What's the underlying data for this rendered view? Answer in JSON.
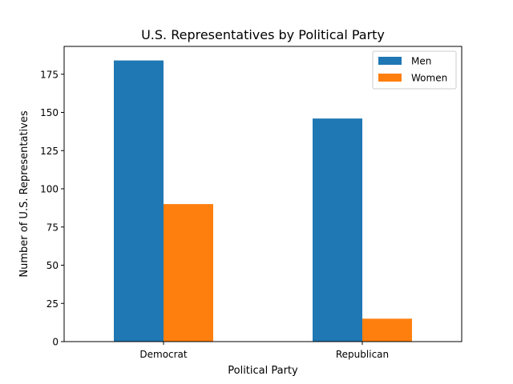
{
  "chart_data": {
    "type": "bar",
    "title": "U.S. Representatives by Political Party",
    "xlabel": "Political Party",
    "ylabel": "Number of U.S. Representatives",
    "categories": [
      "Democrat",
      "Republican"
    ],
    "series": [
      {
        "name": "Men",
        "values": [
          184,
          146
        ],
        "color": "#1f77b4"
      },
      {
        "name": "Women",
        "values": [
          90,
          15
        ],
        "color": "#ff7f0e"
      }
    ],
    "ylim": [
      0,
      193.2
    ],
    "yticks": [
      0,
      25,
      50,
      75,
      100,
      125,
      150,
      175
    ],
    "ytick_labels": [
      "0",
      "25",
      "50",
      "75",
      "100",
      "125",
      "150",
      "175"
    ],
    "grid": false,
    "legend_position": "top-right"
  }
}
